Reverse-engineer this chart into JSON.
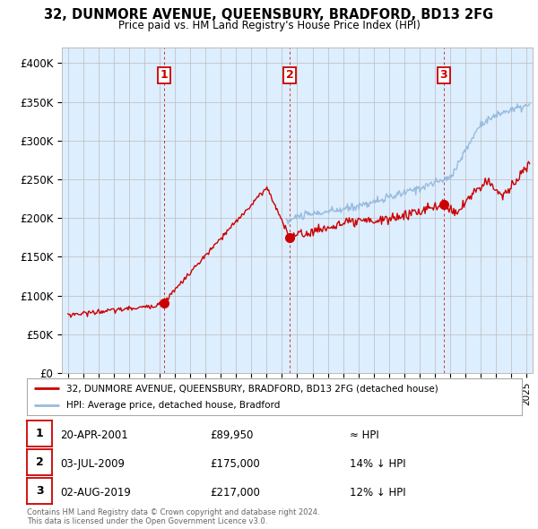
{
  "title": "32, DUNMORE AVENUE, QUEENSBURY, BRADFORD, BD13 2FG",
  "subtitle": "Price paid vs. HM Land Registry's House Price Index (HPI)",
  "ylim": [
    0,
    420000
  ],
  "yticks": [
    0,
    50000,
    100000,
    150000,
    200000,
    250000,
    300000,
    350000,
    400000
  ],
  "ytick_labels": [
    "£0",
    "£50K",
    "£100K",
    "£150K",
    "£200K",
    "£250K",
    "£300K",
    "£350K",
    "£400K"
  ],
  "xlim_start": 1994.6,
  "xlim_end": 2025.4,
  "legend_line1": "32, DUNMORE AVENUE, QUEENSBURY, BRADFORD, BD13 2FG (detached house)",
  "legend_line2": "HPI: Average price, detached house, Bradford",
  "sale1_date": 2001.3,
  "sale1_price": 89950,
  "sale2_date": 2009.5,
  "sale2_price": 175000,
  "sale3_date": 2019.58,
  "sale3_price": 217000,
  "footer_line1": "Contains HM Land Registry data © Crown copyright and database right 2024.",
  "footer_line2": "This data is licensed under the Open Government Licence v3.0.",
  "table_row1": [
    "1",
    "20-APR-2001",
    "£89,950",
    "≈ HPI"
  ],
  "table_row2": [
    "2",
    "03-JUL-2009",
    "£175,000",
    "14% ↓ HPI"
  ],
  "table_row3": [
    "3",
    "02-AUG-2019",
    "£217,000",
    "12% ↓ HPI"
  ],
  "red_color": "#cc0000",
  "blue_color": "#99bbdd",
  "chart_bg": "#ddeeff",
  "bg_color": "#ffffff",
  "grid_color": "#bbbbbb",
  "vline_color": "#cc0000"
}
